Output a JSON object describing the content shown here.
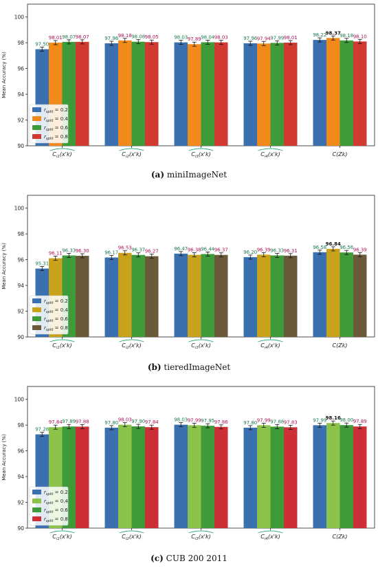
{
  "colors": {
    "r02": "#3a6fb0",
    "r04a": "#f2891b",
    "r04b": "#c9a21c",
    "r04c": "#8bc34a",
    "r06": "#3f9a3a",
    "r08a": "#d13a30",
    "r08b": "#6b5a3a",
    "r08c": "#cc2f36",
    "label_green": "#1a7a4a",
    "label_magenta": "#b0105a",
    "brace": "#2aa87a"
  },
  "chart_data": [
    {
      "type": "bar",
      "panel_id": "a",
      "caption_tag": "(a)",
      "caption_text": "miniImageNet",
      "ylabel": "Mean Accuracy (%)",
      "ylim": [
        90,
        101
      ],
      "yticks": [
        "90",
        "92",
        "94",
        "96",
        "98",
        "100"
      ],
      "categories": [
        "C_{i_1}(x'_k)",
        "C_{i_2}(x'_k)",
        "C_{i_3}(x'_k)",
        "C_{i_4}(x'_k)",
        "C(Z_k)"
      ],
      "series": [
        {
          "name": "r_split = 0.2",
          "values": [
            97.5,
            97.96,
            98.03,
            97.96,
            98.22
          ],
          "labels": [
            "97.50",
            "97.96",
            "98.03",
            "97.96",
            "98.22"
          ]
        },
        {
          "name": "r_split = 0.4",
          "values": [
            98.01,
            98.18,
            97.89,
            97.94,
            98.37
          ],
          "labels": [
            "98.01",
            "98.18",
            "97.89",
            "97.94",
            "98.37"
          ]
        },
        {
          "name": "r_split = 0.6",
          "values": [
            98.07,
            98.08,
            98.04,
            97.99,
            98.18
          ],
          "labels": [
            "98.07",
            "98.08",
            "98.04",
            "97.99",
            "98.18"
          ]
        },
        {
          "name": "r_split = 0.8",
          "values": [
            98.07,
            98.05,
            98.03,
            98.01,
            98.1
          ],
          "labels": [
            "98.07",
            "98.05",
            "98.03",
            "98.01",
            "98.10"
          ]
        }
      ],
      "bold_label": {
        "series": 1,
        "category": 4
      },
      "legend": {
        "placement": "lower-left",
        "entries": [
          "r_split = 0.2",
          "r_split = 0.4",
          "r_split = 0.6",
          "r_split = 0.8"
        ]
      }
    },
    {
      "type": "bar",
      "panel_id": "b",
      "caption_tag": "(b)",
      "caption_text": "tieredImageNet",
      "ylabel": "Mean Accuracy (%)",
      "ylim": [
        90,
        101
      ],
      "yticks": [
        "90",
        "92",
        "94",
        "96",
        "98",
        "100"
      ],
      "categories": [
        "C_{i_1}(x'_k)",
        "C_{i_2}(x'_k)",
        "C_{i_3}(x'_k)",
        "C_{i_4}(x'_k)",
        "C(Z_k)"
      ],
      "series": [
        {
          "name": "r_split = 0.2",
          "values": [
            95.31,
            96.17,
            96.47,
            96.2,
            96.58
          ],
          "labels": [
            "95.31",
            "96.17",
            "96.47",
            "96.20",
            "96.58"
          ]
        },
        {
          "name": "r_split = 0.4",
          "values": [
            96.11,
            96.53,
            96.38,
            96.39,
            96.84
          ],
          "labels": [
            "96.11",
            "96.53",
            "96.38",
            "96.39",
            "96.84"
          ]
        },
        {
          "name": "r_split = 0.6",
          "values": [
            96.33,
            96.37,
            96.44,
            96.33,
            96.56
          ],
          "labels": [
            "96.33",
            "96.37",
            "96.44",
            "96.33",
            "96.56"
          ]
        },
        {
          "name": "r_split = 0.8",
          "values": [
            96.3,
            96.27,
            96.37,
            96.31,
            96.39
          ],
          "labels": [
            "96.30",
            "96.27",
            "96.37",
            "96.31",
            "96.39"
          ]
        }
      ],
      "bold_label": {
        "series": 1,
        "category": 4
      },
      "legend": {
        "placement": "lower-left",
        "entries": [
          "r_split = 0.2",
          "r_split = 0.4",
          "r_split = 0.6",
          "r_split = 0.8"
        ]
      }
    },
    {
      "type": "bar",
      "panel_id": "c",
      "caption_tag": "(c)",
      "caption_text": "CUB 200 2011",
      "ylabel": "Mean Accuracy (%)",
      "ylim": [
        90,
        101
      ],
      "yticks": [
        "90",
        "92",
        "94",
        "96",
        "98",
        "100"
      ],
      "categories": [
        "C_{i_1}(x'_k)",
        "C_{i_2}(x'_k)",
        "C_{i_3}(x'_k)",
        "C_{i_4}(x'_k)",
        "C(Z_k)"
      ],
      "series": [
        {
          "name": "r_split = 0.2",
          "values": [
            97.28,
            97.8,
            98.03,
            97.8,
            97.99
          ],
          "labels": [
            "97.28",
            "97.80",
            "98.03",
            "97.80",
            "97.99"
          ]
        },
        {
          "name": "r_split = 0.4",
          "values": [
            97.84,
            98.03,
            97.99,
            97.99,
            98.16
          ],
          "labels": [
            "97.84",
            "98.03",
            "97.99",
            "97.99",
            "98.16"
          ]
        },
        {
          "name": "r_split = 0.6",
          "values": [
            97.89,
            97.9,
            97.95,
            97.88,
            98.0
          ],
          "labels": [
            "97.89",
            "97.90",
            "97.95",
            "97.88",
            "98.00"
          ]
        },
        {
          "name": "r_split = 0.8",
          "values": [
            97.88,
            97.84,
            97.86,
            97.83,
            97.89
          ],
          "labels": [
            "97.88",
            "97.84",
            "97.86",
            "97.83",
            "97.89"
          ]
        }
      ],
      "bold_label": {
        "series": 1,
        "category": 4
      },
      "legend": {
        "placement": "lower-left",
        "entries": [
          "r_split = 0.2",
          "r_split = 0.4",
          "r_split = 0.6",
          "r_split = 0.8"
        ]
      }
    }
  ]
}
